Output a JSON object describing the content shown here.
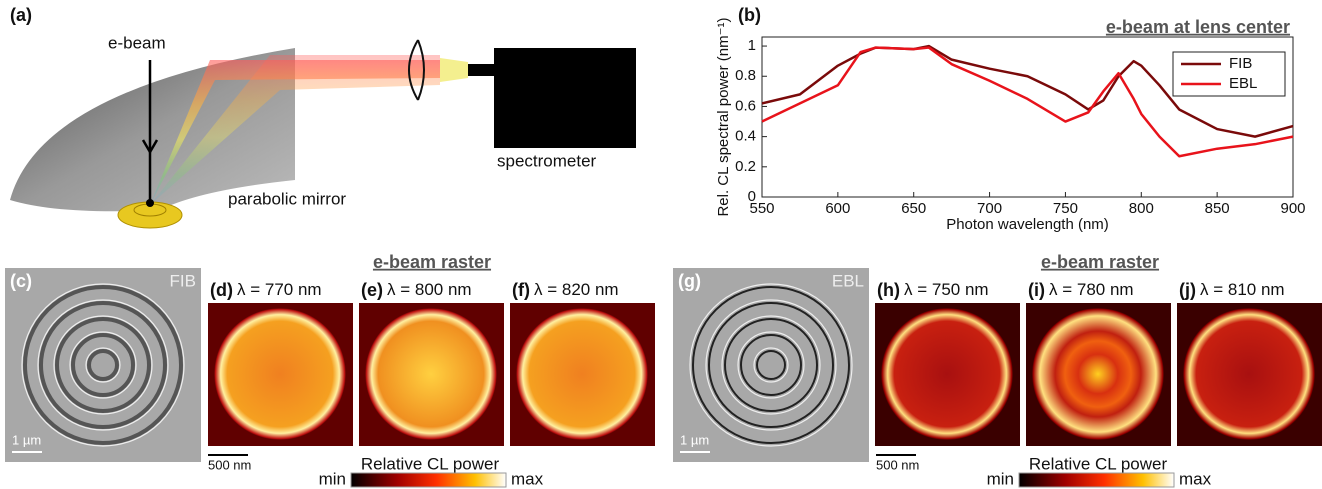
{
  "panel_a": {
    "label": "(a)",
    "ebeam": "e-beam",
    "mirror": "parabolic mirror",
    "spectrometer": "spectrometer"
  },
  "chart_data": {
    "type": "line",
    "panel_label": "(b)",
    "title": "e-beam at lens center",
    "xlabel": "Photon wavelength (nm)",
    "ylabel": "Rel. CL spectral power (nm⁻¹)",
    "x": [
      550,
      575,
      600,
      615,
      625,
      650,
      660,
      675,
      700,
      725,
      750,
      765,
      775,
      785,
      795,
      800,
      812,
      825,
      850,
      875,
      900
    ],
    "series": [
      {
        "name": "FIB",
        "color": "#7a0a0a",
        "values": [
          0.62,
          0.68,
          0.87,
          0.95,
          0.99,
          0.98,
          1.0,
          0.91,
          0.85,
          0.8,
          0.68,
          0.58,
          0.64,
          0.8,
          0.9,
          0.87,
          0.74,
          0.58,
          0.45,
          0.4,
          0.47
        ]
      },
      {
        "name": "EBL",
        "color": "#e8131b",
        "values": [
          0.5,
          0.62,
          0.74,
          0.96,
          0.99,
          0.98,
          0.99,
          0.88,
          0.77,
          0.65,
          0.5,
          0.56,
          0.7,
          0.82,
          0.65,
          0.55,
          0.4,
          0.27,
          0.32,
          0.35,
          0.4
        ]
      }
    ],
    "xlim": [
      550,
      900
    ],
    "ylim": [
      0,
      1.06
    ],
    "xticks": [
      550,
      600,
      650,
      700,
      750,
      800,
      850,
      900
    ],
    "yticks": [
      0,
      0.2,
      0.4,
      0.6,
      0.8,
      1
    ],
    "legend": "upper right"
  },
  "raster_groups": [
    {
      "heading": "e-beam raster",
      "sem_label": "(c)",
      "sem_tag": "FIB",
      "sem_scale": "1 µm",
      "maps": [
        {
          "label": "(d)",
          "wavelength": "λ = 770 nm"
        },
        {
          "label": "(e)",
          "wavelength": "λ = 800 nm"
        },
        {
          "label": "(f)",
          "wavelength": "λ = 820 nm"
        }
      ],
      "map_scale": "500 nm",
      "colorbar_title": "Relative CL power",
      "colorbar_min": "min",
      "colorbar_max": "max"
    },
    {
      "heading": "e-beam raster",
      "sem_label": "(g)",
      "sem_tag": "EBL",
      "sem_scale": "1 µm",
      "maps": [
        {
          "label": "(h)",
          "wavelength": "λ = 750 nm"
        },
        {
          "label": "(i)",
          "wavelength": "λ = 780 nm"
        },
        {
          "label": "(j)",
          "wavelength": "λ = 810 nm"
        }
      ],
      "map_scale": "500 nm",
      "colorbar_title": "Relative CL power",
      "colorbar_min": "min",
      "colorbar_max": "max"
    }
  ]
}
